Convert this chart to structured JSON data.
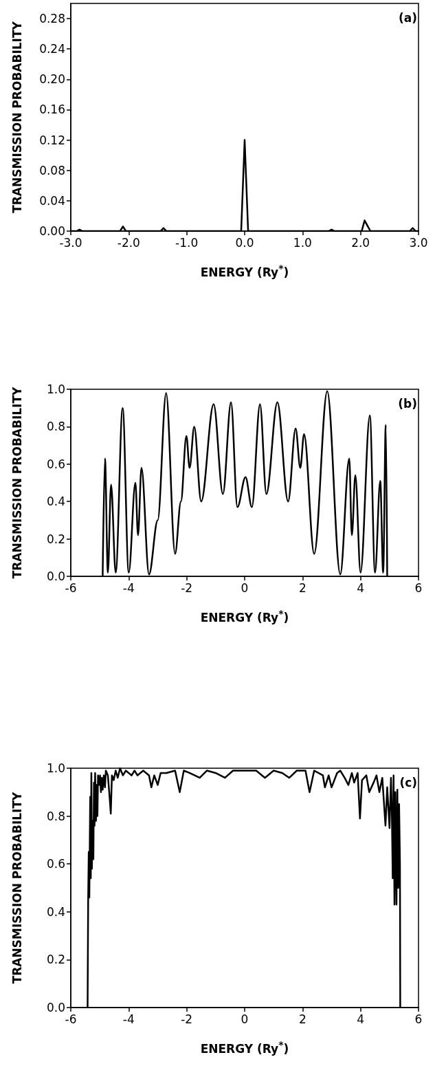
{
  "chart_data": [
    {
      "type": "line",
      "xlabel": "ENERGY (Ry$^{*}$)",
      "ylabel": "TRANSMISSION PROBABILITY",
      "annotations": [
        "(a)"
      ],
      "grid": false,
      "xlim": [
        -3,
        3
      ],
      "ylim": [
        0,
        0.3
      ],
      "xticks": [
        {
          "value": -3,
          "label": "-3.0"
        },
        {
          "value": -2,
          "label": "-2.0"
        },
        {
          "value": -1,
          "label": "-1.0"
        },
        {
          "value": 0,
          "label": "0.0"
        },
        {
          "value": 1,
          "label": "1.0"
        },
        {
          "value": 2,
          "label": "2.0"
        },
        {
          "value": 3,
          "label": "3.0"
        }
      ],
      "yticks": [
        {
          "value": 0,
          "label": "0.00"
        },
        {
          "value": 0.04,
          "label": "0.04"
        },
        {
          "value": 0.08,
          "label": "0.08"
        },
        {
          "value": 0.12,
          "label": "0.12"
        },
        {
          "value": 0.16,
          "label": "0.16"
        },
        {
          "value": 0.2,
          "label": "0.20"
        },
        {
          "value": 0.24,
          "label": "0.24"
        },
        {
          "value": 0.28,
          "label": "0.28"
        }
      ],
      "series": [
        {
          "color": "#000000",
          "x": [
            -3,
            -2.9,
            -2.85,
            -2.8,
            -2.15,
            -2.1,
            -2.05,
            -1.45,
            -1.4,
            -1.35,
            -0.06,
            -0.03,
            0,
            0.03,
            0.06,
            1.45,
            1.5,
            1.55,
            2.02,
            2.07,
            2.12,
            2.17,
            2.85,
            2.9,
            2.95,
            3
          ],
          "values": [
            0,
            0,
            0.002,
            0,
            0,
            0.006,
            0,
            0,
            0.004,
            0,
            0,
            0.06,
            0.12,
            0.06,
            0,
            0,
            0.002,
            0,
            0,
            0.014,
            0.007,
            0,
            0,
            0.004,
            0,
            0
          ]
        }
      ]
    },
    {
      "type": "line",
      "xlabel": "ENERGY (Ry$^{*}$)",
      "ylabel": "TRANSMISSION PROBABILITY",
      "annotations": [
        "(b)"
      ],
      "grid": false,
      "xlim": [
        -6,
        6
      ],
      "ylim": [
        0,
        1
      ],
      "xticks": [
        -6,
        -4,
        -2,
        0,
        2,
        4,
        6
      ],
      "yticks": [
        {
          "value": 0,
          "label": "0.0"
        },
        {
          "value": 0.2,
          "label": "0.2"
        },
        {
          "value": 0.4,
          "label": "0.4"
        },
        {
          "value": 0.6,
          "label": "0.6"
        },
        {
          "value": 0.8,
          "label": "0.8"
        },
        {
          "value": 1,
          "label": "1.0"
        }
      ],
      "series": [
        {
          "color": "#000000",
          "x": [
            -4.9,
            -4.82,
            -4.72,
            -4.61,
            -4.45,
            -4.21,
            -4.0,
            -3.77,
            -3.68,
            -3.56,
            -3.3,
            -3.0,
            -2.71,
            -2.4,
            -2.2,
            -2.01,
            -1.9,
            -1.74,
            -1.5,
            -1.07,
            -0.75,
            -0.47,
            -0.25,
            0.03,
            0.25,
            0.53,
            0.75,
            1.13,
            1.5,
            1.76,
            1.92,
            2.05,
            2.4,
            2.85,
            3.3,
            3.61,
            3.7,
            3.82,
            4.0,
            4.32,
            4.5,
            4.68,
            4.78,
            4.87,
            4.92
          ],
          "values": [
            0,
            0.63,
            0.02,
            0.49,
            0.02,
            0.9,
            0.02,
            0.5,
            0.22,
            0.58,
            0.01,
            0.3,
            0.98,
            0.12,
            0.4,
            0.75,
            0.58,
            0.8,
            0.4,
            0.92,
            0.44,
            0.93,
            0.37,
            0.53,
            0.37,
            0.92,
            0.44,
            0.93,
            0.4,
            0.79,
            0.58,
            0.76,
            0.12,
            0.99,
            0.01,
            0.63,
            0.22,
            0.54,
            0.02,
            0.86,
            0.02,
            0.51,
            0.02,
            0.81,
            0
          ]
        }
      ]
    },
    {
      "type": "line",
      "xlabel": "ENERGY (Ry$^{*}$)",
      "ylabel": "TRANSMISSION PROBABILITY",
      "annotations": [
        "(c)"
      ],
      "grid": false,
      "xlim": [
        -6,
        6
      ],
      "ylim": [
        0,
        1
      ],
      "xticks": [
        -6,
        -4,
        -2,
        0,
        2,
        4,
        6
      ],
      "yticks": [
        {
          "value": 0,
          "label": "0.0"
        },
        {
          "value": 0.2,
          "label": "0.2"
        },
        {
          "value": 0.4,
          "label": "0.4"
        },
        {
          "value": 0.6,
          "label": "0.6"
        },
        {
          "value": 0.8,
          "label": "0.8"
        },
        {
          "value": 1,
          "label": "1.0"
        }
      ],
      "series": [
        {
          "color": "#000000",
          "x": [
            -5.42,
            -5.4,
            -5.38,
            -5.36,
            -5.33,
            -5.31,
            -5.29,
            -5.27,
            -5.25,
            -5.22,
            -5.2,
            -5.18,
            -5.16,
            -5.13,
            -5.11,
            -5.08,
            -5.06,
            -5.02,
            -4.99,
            -4.96,
            -4.93,
            -4.9,
            -4.86,
            -4.82,
            -4.79,
            -4.72,
            -4.66,
            -4.62,
            -4.58,
            -4.52,
            -4.45,
            -4.38,
            -4.3,
            -4.2,
            -4.1,
            -3.9,
            -3.8,
            -3.7,
            -3.5,
            -3.3,
            -3.22,
            -3.12,
            -3.0,
            -2.9,
            -2.7,
            -2.4,
            -2.24,
            -2.1,
            -1.9,
            -1.55,
            -1.3,
            -1.0,
            -0.68,
            -0.4,
            0,
            0.4,
            0.7,
            1.0,
            1.3,
            1.54,
            1.8,
            2.1,
            2.24,
            2.4,
            2.7,
            2.77,
            2.9,
            3.0,
            3.19,
            3.3,
            3.45,
            3.58,
            3.7,
            3.78,
            3.9,
            3.98,
            4.05,
            4.2,
            4.3,
            4.45,
            4.55,
            4.65,
            4.75,
            4.86,
            4.92,
            5.0,
            5.05,
            5.08,
            5.11,
            5.14,
            5.17,
            5.2,
            5.24,
            5.27,
            5.3,
            5.33,
            5.36,
            5.37
          ],
          "values": [
            0,
            0.45,
            0.65,
            0.46,
            0.88,
            0.54,
            0.98,
            0.58,
            0.78,
            0.62,
            0.94,
            0.76,
            0.98,
            0.78,
            0.93,
            0.8,
            0.97,
            0.93,
            0.97,
            0.9,
            0.96,
            0.91,
            0.97,
            0.92,
            0.99,
            0.97,
            0.88,
            0.81,
            0.97,
            0.95,
            0.99,
            0.96,
            1.0,
            0.97,
            0.99,
            0.97,
            0.99,
            0.97,
            0.99,
            0.97,
            0.92,
            0.97,
            0.93,
            0.98,
            0.98,
            0.99,
            0.9,
            0.99,
            0.98,
            0.96,
            0.99,
            0.98,
            0.96,
            0.99,
            0.99,
            0.99,
            0.96,
            0.99,
            0.98,
            0.96,
            0.99,
            0.99,
            0.9,
            0.99,
            0.97,
            0.92,
            0.97,
            0.92,
            0.98,
            0.99,
            0.96,
            0.93,
            0.98,
            0.94,
            0.98,
            0.79,
            0.95,
            0.97,
            0.9,
            0.94,
            0.97,
            0.9,
            0.96,
            0.76,
            0.92,
            0.75,
            0.96,
            0.82,
            0.54,
            0.97,
            0.43,
            0.9,
            0.43,
            0.91,
            0.5,
            0.85,
            0.6,
            0
          ]
        }
      ]
    }
  ]
}
